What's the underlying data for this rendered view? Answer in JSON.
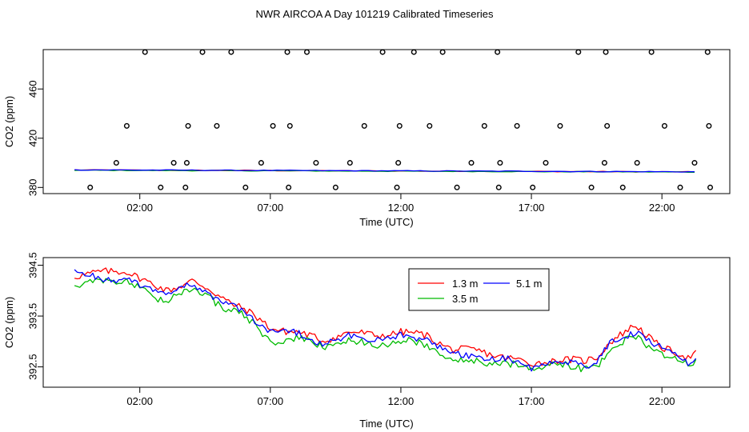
{
  "title": "NWR AIRCOA A  Day 101219  Calibrated Timeseries",
  "chart_data": [
    {
      "type": "scatter",
      "xlabel": "Time (UTC)",
      "ylabel": "CO2 (ppm)",
      "xlim": [
        -1.7,
        24.6
      ],
      "ylim": [
        375,
        492
      ],
      "xticks": [
        2,
        7,
        12,
        17,
        22
      ],
      "xtick_labels": [
        "02:00",
        "07:00",
        "12:00",
        "17:00",
        "22:00"
      ],
      "yticks": [
        380,
        420,
        460
      ],
      "ytick_labels": [
        "380",
        "420",
        "460"
      ],
      "calibration_points": {
        "x": [
          0.1,
          1.1,
          1.5,
          2.2,
          2.8,
          3.3,
          3.75,
          3.8,
          3.85,
          4.4,
          4.95,
          5.5,
          6.05,
          6.65,
          7.1,
          7.65,
          7.7,
          7.75,
          8.4,
          8.75,
          9.5,
          10.05,
          10.6,
          11.3,
          11.85,
          11.9,
          11.95,
          12.5,
          13.1,
          13.6,
          14.15,
          14.7,
          15.2,
          15.7,
          15.75,
          15.8,
          16.45,
          17.05,
          17.55,
          18.1,
          18.8,
          19.3,
          19.8,
          19.85,
          19.9,
          20.5,
          21.05,
          21.6,
          22.1,
          22.7,
          23.25,
          23.75,
          23.8,
          23.85
        ],
        "y": [
          380,
          400,
          430,
          490,
          380,
          400,
          380,
          400,
          430,
          490,
          430,
          490,
          380,
          400,
          430,
          490,
          380,
          430,
          490,
          400,
          380,
          400,
          430,
          490,
          380,
          400,
          430,
          490,
          430,
          490,
          380,
          400,
          430,
          490,
          380,
          400,
          430,
          380,
          400,
          430,
          490,
          380,
          400,
          490,
          430,
          380,
          400,
          490,
          430,
          380,
          400,
          490,
          430,
          380
        ]
      },
      "series": [
        {
          "name": "1.3 m",
          "color": "#ff0000",
          "x": [
            -0.5,
            23.3
          ],
          "values": [
            394.2,
            392.6
          ]
        },
        {
          "name": "3.5 m",
          "color": "#00bb00",
          "x": [
            -0.5,
            23.3
          ],
          "values": [
            394.0,
            392.5
          ]
        },
        {
          "name": "5.1 m",
          "color": "#0000ff",
          "x": [
            -0.5,
            23.3
          ],
          "values": [
            394.3,
            392.7
          ]
        }
      ]
    },
    {
      "type": "line",
      "xlabel": "Time (UTC)",
      "ylabel": "CO2 (ppm)",
      "xlim": [
        -1.7,
        24.6
      ],
      "ylim": [
        392.1,
        394.65
      ],
      "xticks": [
        2,
        7,
        12,
        17,
        22
      ],
      "xtick_labels": [
        "02:00",
        "07:00",
        "12:00",
        "17:00",
        "22:00"
      ],
      "yticks": [
        392.5,
        393.5,
        394.5
      ],
      "ytick_labels": [
        "392.5",
        "393.5",
        "394.5"
      ],
      "legend": {
        "position": "top-center",
        "entries": [
          "1.3 m",
          "3.5 m",
          "5.1 m"
        ]
      },
      "series": [
        {
          "name": "1.3 m",
          "color": "#ff0000",
          "x": [
            -0.5,
            0.5,
            1.5,
            2.5,
            3.0,
            3.5,
            4.0,
            5.0,
            6.0,
            7.0,
            8.0,
            9.0,
            10.0,
            11.0,
            12.0,
            13.0,
            14.0,
            15.0,
            16.0,
            17.0,
            18.0,
            19.0,
            19.5,
            20.0,
            21.0,
            22.0,
            23.0,
            23.3
          ],
          "values": [
            394.3,
            394.35,
            394.4,
            394.1,
            394.0,
            394.1,
            394.2,
            393.9,
            393.65,
            393.25,
            393.2,
            393.0,
            393.2,
            393.1,
            393.2,
            393.1,
            392.85,
            392.8,
            392.7,
            392.55,
            392.65,
            392.6,
            392.7,
            393.0,
            393.3,
            392.9,
            392.65,
            392.78
          ]
        },
        {
          "name": "3.5 m",
          "color": "#00bb00",
          "x": [
            -0.5,
            0.5,
            1.5,
            2.5,
            3.0,
            3.5,
            4.0,
            5.0,
            6.0,
            7.0,
            8.0,
            9.0,
            10.0,
            11.0,
            12.0,
            13.0,
            14.0,
            15.0,
            16.0,
            17.0,
            18.0,
            19.0,
            19.5,
            20.0,
            21.0,
            22.0,
            23.0,
            23.3
          ],
          "values": [
            394.1,
            394.2,
            394.2,
            393.85,
            393.8,
            393.95,
            394.05,
            393.75,
            393.5,
            393.0,
            393.05,
            392.9,
            393.0,
            392.95,
            393.0,
            392.95,
            392.65,
            392.6,
            392.55,
            392.5,
            392.55,
            392.45,
            392.5,
            392.85,
            393.1,
            392.75,
            392.55,
            392.62
          ]
        },
        {
          "name": "5.1 m",
          "color": "#0000ff",
          "x": [
            -0.5,
            0.5,
            1.5,
            2.5,
            3.0,
            3.5,
            4.0,
            5.0,
            6.0,
            7.0,
            8.0,
            9.0,
            10.0,
            11.0,
            12.0,
            13.0,
            14.0,
            15.0,
            16.0,
            17.0,
            18.0,
            19.0,
            19.5,
            20.0,
            21.0,
            22.0,
            23.0,
            23.3
          ],
          "values": [
            394.35,
            394.25,
            394.2,
            394.0,
            393.95,
            394.05,
            394.1,
            393.85,
            393.55,
            393.2,
            393.15,
            392.95,
            393.1,
            393.05,
            393.1,
            393.05,
            392.75,
            392.7,
            392.65,
            392.5,
            392.6,
            392.55,
            392.6,
            392.95,
            393.2,
            392.85,
            392.6,
            392.72
          ]
        }
      ]
    }
  ]
}
